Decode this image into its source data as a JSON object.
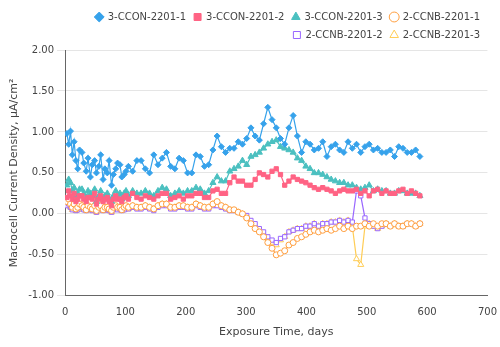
{
  "chart_data": {
    "type": "line",
    "xlabel": "Exposure Time, days",
    "ylabel": "Macrocell Current Density, μA/cm²",
    "xlim": [
      0,
      700
    ],
    "ylim": [
      -1.0,
      2.0
    ],
    "xticks": [
      0,
      100,
      200,
      300,
      400,
      500,
      600,
      700
    ],
    "yticks": [
      {
        "value": -1.0,
        "label": "-1.00"
      },
      {
        "value": -0.5,
        "label": "-0.50"
      },
      {
        "value": 0.0,
        "label": "0.00"
      },
      {
        "value": 0.5,
        "label": "0.50"
      },
      {
        "value": 1.0,
        "label": "1.00"
      },
      {
        "value": 1.5,
        "label": "1.50"
      },
      {
        "value": 2.0,
        "label": "2.00"
      }
    ],
    "grid": "y",
    "legend": "upper right",
    "x": [
      3,
      6,
      9,
      12,
      15,
      18,
      21,
      24,
      28,
      31,
      35,
      38,
      42,
      45,
      49,
      52,
      56,
      59,
      63,
      66,
      70,
      73,
      77,
      80,
      84,
      87,
      91,
      94,
      98,
      101,
      105,
      112,
      119,
      126,
      133,
      140,
      147,
      154,
      161,
      168,
      175,
      182,
      189,
      196,
      203,
      210,
      217,
      224,
      231,
      238,
      245,
      252,
      259,
      266,
      273,
      280,
      287,
      294,
      301,
      308,
      315,
      322,
      329,
      336,
      343,
      350,
      357,
      364,
      371,
      378,
      385,
      392,
      399,
      406,
      413,
      420,
      427,
      434,
      441,
      448,
      455,
      462,
      469,
      476,
      483,
      490,
      497,
      504,
      511,
      518,
      525,
      532,
      539,
      546,
      553,
      560,
      567,
      574,
      581,
      588
    ],
    "series": [
      {
        "name": "3-CCON-2201-1",
        "marker": "diamond",
        "values": [
          0.98,
          0.85,
          1.01,
          0.72,
          0.88,
          0.65,
          0.55,
          0.78,
          0.75,
          0.62,
          0.52,
          0.68,
          0.45,
          0.6,
          0.65,
          0.5,
          0.58,
          0.72,
          0.42,
          0.55,
          0.5,
          0.65,
          0.35,
          0.48,
          0.55,
          0.62,
          0.6,
          0.45,
          0.48,
          0.52,
          0.58,
          0.52,
          0.65,
          0.65,
          0.55,
          0.5,
          0.72,
          0.6,
          0.68,
          0.75,
          0.58,
          0.55,
          0.68,
          0.65,
          0.5,
          0.5,
          0.72,
          0.7,
          0.58,
          0.6,
          0.78,
          0.95,
          0.82,
          0.75,
          0.8,
          0.8,
          0.88,
          0.85,
          0.92,
          1.05,
          0.95,
          0.9,
          1.1,
          1.3,
          1.15,
          1.05,
          0.92,
          0.85,
          1.05,
          1.2,
          0.95,
          0.75,
          0.88,
          0.85,
          0.78,
          0.8,
          0.88,
          0.7,
          0.82,
          0.85,
          0.78,
          0.75,
          0.88,
          0.8,
          0.85,
          0.75,
          0.82,
          0.85,
          0.78,
          0.8,
          0.75,
          0.75,
          0.78,
          0.7,
          0.82,
          0.8,
          0.75,
          0.75,
          0.78,
          0.7
        ]
      },
      {
        "name": "3-CCON-2201-2",
        "marker": "square",
        "values": [
          0.2,
          0.28,
          0.22,
          0.18,
          0.25,
          0.15,
          0.18,
          0.22,
          0.22,
          0.18,
          0.15,
          0.2,
          0.2,
          0.18,
          0.25,
          0.12,
          0.18,
          0.22,
          0.15,
          0.18,
          0.2,
          0.15,
          0.1,
          0.18,
          0.22,
          0.18,
          0.18,
          0.15,
          0.2,
          0.22,
          0.18,
          0.25,
          0.2,
          0.18,
          0.22,
          0.2,
          0.18,
          0.22,
          0.25,
          0.25,
          0.18,
          0.2,
          0.22,
          0.18,
          0.22,
          0.22,
          0.25,
          0.25,
          0.2,
          0.2,
          0.28,
          0.3,
          0.25,
          0.25,
          0.38,
          0.45,
          0.4,
          0.4,
          0.35,
          0.35,
          0.42,
          0.5,
          0.48,
          0.45,
          0.52,
          0.55,
          0.48,
          0.35,
          0.4,
          0.45,
          0.42,
          0.4,
          0.38,
          0.35,
          0.32,
          0.3,
          0.32,
          0.3,
          0.28,
          0.25,
          0.28,
          0.3,
          0.28,
          0.28,
          0.3,
          0.25,
          0.28,
          0.22,
          0.28,
          0.3,
          0.25,
          0.28,
          0.25,
          0.25,
          0.28,
          0.3,
          0.25,
          0.28,
          0.25,
          0.22
        ]
      },
      {
        "name": "3-CCON-2201-3",
        "marker": "triangle",
        "values": [
          0.35,
          0.42,
          0.38,
          0.28,
          0.32,
          0.22,
          0.25,
          0.3,
          0.3,
          0.25,
          0.2,
          0.28,
          0.25,
          0.22,
          0.3,
          0.15,
          0.22,
          0.28,
          0.18,
          0.22,
          0.25,
          0.18,
          0.15,
          0.22,
          0.28,
          0.22,
          0.25,
          0.18,
          0.25,
          0.28,
          0.22,
          0.28,
          0.25,
          0.25,
          0.28,
          0.25,
          0.22,
          0.28,
          0.32,
          0.3,
          0.22,
          0.25,
          0.28,
          0.25,
          0.28,
          0.28,
          0.32,
          0.3,
          0.25,
          0.28,
          0.38,
          0.45,
          0.4,
          0.4,
          0.52,
          0.55,
          0.58,
          0.65,
          0.6,
          0.7,
          0.72,
          0.75,
          0.8,
          0.85,
          0.88,
          0.9,
          0.82,
          0.8,
          0.78,
          0.75,
          0.68,
          0.65,
          0.58,
          0.55,
          0.5,
          0.5,
          0.48,
          0.45,
          0.42,
          0.4,
          0.38,
          0.38,
          0.35,
          0.35,
          0.32,
          0.3,
          0.32,
          0.35,
          0.28,
          0.3,
          0.28,
          0.28,
          0.25,
          0.25,
          0.28,
          0.28,
          0.25,
          0.25,
          0.25,
          0.22
        ]
      },
      {
        "name": "2-CCNB-2201-1",
        "marker": "open_circle",
        "values": [
          0.15,
          0.18,
          0.12,
          0.08,
          0.12,
          0.06,
          0.08,
          0.12,
          0.1,
          0.08,
          0.05,
          0.1,
          0.08,
          0.06,
          0.1,
          0.04,
          0.08,
          0.1,
          0.05,
          0.08,
          0.08,
          0.06,
          0.04,
          0.08,
          0.1,
          0.08,
          0.08,
          0.05,
          0.08,
          0.1,
          0.08,
          0.1,
          0.08,
          0.08,
          0.1,
          0.08,
          0.06,
          0.1,
          0.12,
          0.12,
          0.08,
          0.08,
          0.1,
          0.1,
          0.08,
          0.08,
          0.12,
          0.1,
          0.08,
          0.08,
          0.12,
          0.15,
          0.1,
          0.08,
          0.05,
          0.05,
          0.02,
          0.0,
          -0.05,
          -0.12,
          -0.18,
          -0.22,
          -0.28,
          -0.35,
          -0.42,
          -0.5,
          -0.48,
          -0.45,
          -0.38,
          -0.35,
          -0.3,
          -0.28,
          -0.25,
          -0.22,
          -0.2,
          -0.22,
          -0.2,
          -0.18,
          -0.2,
          -0.18,
          -0.15,
          -0.18,
          -0.15,
          -0.18,
          -0.15,
          -0.15,
          -0.12,
          -0.15,
          -0.12,
          -0.15,
          -0.12,
          -0.12,
          -0.15,
          -0.12,
          -0.15,
          -0.15,
          -0.12,
          -0.12,
          -0.15,
          -0.12
        ]
      },
      {
        "name": "2-CCNB-2201-2",
        "marker": "open_square",
        "values": [
          0.1,
          0.12,
          0.08,
          0.05,
          0.1,
          0.04,
          0.05,
          0.08,
          0.08,
          0.05,
          0.04,
          0.08,
          0.06,
          0.04,
          0.08,
          0.02,
          0.05,
          0.08,
          0.04,
          0.05,
          0.06,
          0.04,
          0.02,
          0.05,
          0.08,
          0.05,
          0.06,
          0.04,
          0.05,
          0.08,
          0.06,
          0.08,
          0.06,
          0.06,
          0.08,
          0.06,
          0.04,
          0.08,
          0.1,
          0.1,
          0.06,
          0.06,
          0.08,
          0.08,
          0.06,
          0.06,
          0.1,
          0.08,
          0.06,
          0.06,
          0.1,
          0.1,
          0.08,
          0.06,
          0.04,
          0.04,
          0.02,
          0.0,
          -0.02,
          -0.08,
          -0.12,
          -0.18,
          -0.22,
          -0.28,
          -0.32,
          -0.35,
          -0.3,
          -0.28,
          -0.22,
          -0.2,
          -0.18,
          -0.18,
          -0.15,
          -0.15,
          -0.12,
          -0.15,
          -0.12,
          -0.12,
          -0.1,
          -0.1,
          -0.08,
          -0.1,
          -0.08,
          -0.1,
          0.28,
          0.22,
          -0.05,
          -0.12,
          -0.15,
          -0.18,
          -0.15,
          -0.12,
          -0.15,
          -0.12,
          -0.15,
          -0.15,
          -0.12,
          -0.12,
          -0.15,
          -0.12
        ]
      },
      {
        "name": "2-CCNB-2201-3",
        "marker": "open_triangle",
        "values": [
          0.1,
          0.12,
          0.08,
          0.05,
          0.1,
          0.04,
          0.05,
          0.08,
          0.08,
          0.05,
          0.04,
          0.08,
          0.06,
          0.04,
          0.08,
          0.02,
          0.05,
          0.08,
          0.04,
          0.05,
          0.06,
          0.04,
          0.02,
          0.05,
          0.08,
          0.05,
          0.06,
          0.04,
          0.05,
          0.08,
          0.06,
          0.1,
          0.08,
          0.08,
          0.1,
          0.08,
          0.06,
          0.1,
          0.12,
          0.12,
          0.08,
          0.08,
          0.1,
          0.1,
          0.08,
          0.08,
          0.12,
          0.1,
          0.08,
          0.08,
          0.12,
          0.12,
          0.1,
          0.08,
          0.05,
          0.04,
          0.02,
          0.0,
          -0.04,
          -0.1,
          -0.15,
          -0.2,
          -0.25,
          -0.3,
          -0.35,
          -0.38,
          -0.32,
          -0.28,
          -0.22,
          -0.2,
          -0.18,
          -0.18,
          -0.15,
          -0.15,
          -0.12,
          -0.15,
          -0.12,
          -0.12,
          -0.1,
          -0.1,
          -0.08,
          -0.1,
          -0.08,
          -0.15,
          -0.55,
          -0.62,
          -0.15,
          -0.12,
          -0.15,
          -0.18,
          -0.15,
          -0.12,
          -0.15,
          -0.12,
          -0.15,
          -0.15,
          -0.12,
          -0.12,
          -0.15,
          -0.12
        ]
      }
    ]
  }
}
